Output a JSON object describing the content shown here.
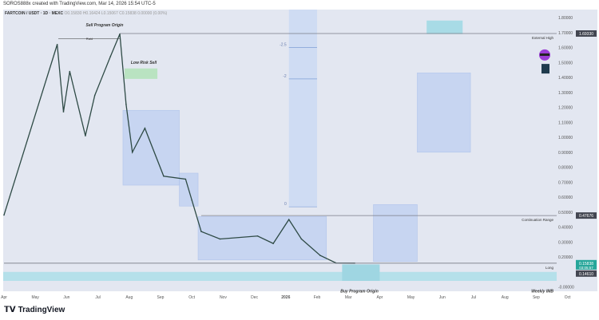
{
  "credit": "SOROS888x created with TradingView.com, Mar 14, 2026 15:54 UTC-5",
  "symbol": {
    "name": "FARTCOIN / USDT · 1D · MEXC",
    "o": "O0.15830",
    "h": "H0.16424",
    "l": "L0.15067",
    "c": "C0.15838",
    "chg": "0.00000 (0.00%)"
  },
  "brand": "TradingView",
  "chart_data": {
    "type": "line",
    "title": "FARTCOIN / USDT · 1D · MEXC",
    "ylim": [
      0,
      1.85
    ],
    "yticks": [
      "1.80000",
      "1.70000",
      "1.60000",
      "1.50000",
      "1.40000",
      "1.30000",
      "1.20000",
      "1.10000",
      "1.00000",
      "0.90000",
      "0.80000",
      "0.70000",
      "0.60000",
      "0.50000",
      "0.40000",
      "0.30000",
      "0.20000",
      "-0.00000"
    ],
    "ytick_values": [
      1.8,
      1.7,
      1.6,
      1.5,
      1.4,
      1.3,
      1.2,
      1.1,
      1.0,
      0.9,
      0.8,
      0.7,
      0.6,
      0.5,
      0.4,
      0.3,
      0.2,
      0
    ],
    "xticks": [
      "Apr",
      "May",
      "Jun",
      "Jul",
      "Aug",
      "Sep",
      "Oct",
      "Nov",
      "Dec",
      "2026",
      "Feb",
      "Mar",
      "Apr",
      "May",
      "Jun",
      "Jul",
      "Aug",
      "Sep",
      "Oct"
    ],
    "series": [
      {
        "x": [
          0,
          1.7,
          1.9,
          2.1,
          2.6,
          2.9,
          3.4,
          3.7,
          3.9,
          4.1,
          4.5,
          5.1,
          5.8,
          6.0,
          6.3,
          6.9,
          8.1,
          8.6,
          9.1,
          9.5,
          10.1,
          10.6,
          11.2
        ],
        "y": [
          0.48,
          1.62,
          1.17,
          1.44,
          1.01,
          1.28,
          1.54,
          1.69,
          1.22,
          0.9,
          1.06,
          0.74,
          0.72,
          0.58,
          0.37,
          0.32,
          0.34,
          0.29,
          0.45,
          0.32,
          0.21,
          0.16,
          0.159
        ]
      }
    ],
    "x_unit": "months since Apr 2025",
    "levels": [
      {
        "label": "External High",
        "price": 1.6933,
        "tag": "1.69330",
        "from": 3.7
      },
      {
        "label": "Continuation Range",
        "price": 0.47676,
        "tag": "0.47676",
        "from": 6.3
      },
      {
        "label": "Long",
        "price": 0.15838,
        "tag": "0.15838",
        "sub": "03:05:57",
        "from": 0,
        "color": "#26a69a"
      }
    ],
    "imb_tag": "0.14610",
    "zones": [
      {
        "x0": 3.8,
        "x1": 5.6,
        "top": 1.18,
        "bot": 0.68
      },
      {
        "x0": 5.6,
        "x1": 6.2,
        "top": 0.76,
        "bot": 0.54
      },
      {
        "x0": 6.2,
        "x1": 10.3,
        "top": 0.47,
        "bot": 0.18
      },
      {
        "x0": 11.8,
        "x1": 13.2,
        "top": 0.55,
        "bot": 0.17
      },
      {
        "x0": 13.2,
        "x1": 14.9,
        "top": 1.43,
        "bot": 0.9
      }
    ],
    "fib": {
      "x0": 9.1,
      "x1": 10.0,
      "levels": [
        {
          "label": "-2.5",
          "price": 1.6
        },
        {
          "label": "-2",
          "price": 1.39
        },
        {
          "label": "0",
          "price": 0.535
        }
      ]
    },
    "annotations": {
      "sell_origin": "Sell Program Origin",
      "raid": "Raid",
      "low_risk": "Low Risk Sell",
      "buy_origin": "Buy Program Origin",
      "weekly_imb": "Weekly IMB"
    }
  }
}
